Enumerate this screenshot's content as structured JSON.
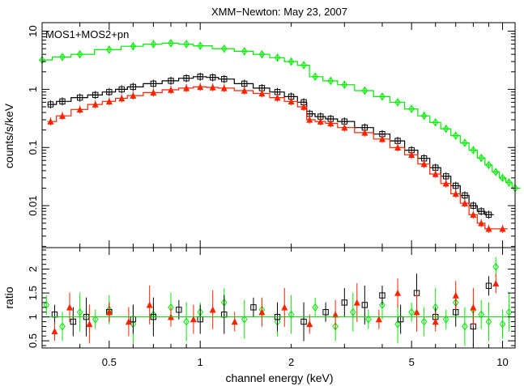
{
  "chart_data": [
    {
      "type": "scatter",
      "panel": "spectrum",
      "title": "XMM−Newton: May 23, 2007",
      "subtitle": "MOS1+MOS2+pn",
      "xlabel": "",
      "ylabel": "counts/s/keV",
      "x_scale": "log",
      "y_scale": "log",
      "xlim": [
        0.3,
        11
      ],
      "ylim": [
        0.0019,
        14
      ],
      "y_ticks": [
        {
          "value": 0.01,
          "label": "0.01"
        },
        {
          "value": 0.1,
          "label": "0.1"
        },
        {
          "value": 1,
          "label": "1"
        },
        {
          "value": 10,
          "label": "10"
        }
      ],
      "grid": false,
      "legend": "none",
      "series": [
        {
          "color": "#00ee00",
          "marker": "diamond",
          "x": [
            0.3,
            0.35,
            0.4,
            0.5,
            0.6,
            0.7,
            0.8,
            0.9,
            1.0,
            1.2,
            1.4,
            1.6,
            1.8,
            2.0,
            2.2,
            2.4,
            2.7,
            3.0,
            3.5,
            4.0,
            4.5,
            5.0,
            5.5,
            6.0,
            6.5,
            7.0,
            7.5,
            8.0,
            8.5,
            9.0,
            9.5,
            10.0,
            10.5,
            11.0
          ],
          "y": [
            3.2,
            3.6,
            4.0,
            4.8,
            5.5,
            6.0,
            6.2,
            6.0,
            5.6,
            5.0,
            4.5,
            4.0,
            3.5,
            3.0,
            2.6,
            1.65,
            1.4,
            1.2,
            0.95,
            0.75,
            0.6,
            0.46,
            0.35,
            0.27,
            0.21,
            0.16,
            0.12,
            0.09,
            0.066,
            0.05,
            0.038,
            0.03,
            0.025,
            0.02
          ]
        },
        {
          "color": "#000000",
          "marker": "square",
          "x": [
            0.32,
            0.35,
            0.4,
            0.45,
            0.5,
            0.55,
            0.6,
            0.7,
            0.8,
            0.9,
            1.0,
            1.1,
            1.2,
            1.4,
            1.6,
            1.8,
            2.0,
            2.2,
            2.3,
            2.5,
            2.7,
            3.0,
            3.5,
            4.0,
            4.5,
            5.0,
            5.5,
            6.0,
            6.5,
            7.0,
            7.5,
            8.0,
            8.5,
            9.0
          ],
          "y": [
            0.55,
            0.62,
            0.72,
            0.8,
            0.9,
            1.0,
            1.1,
            1.25,
            1.4,
            1.55,
            1.65,
            1.6,
            1.5,
            1.25,
            1.05,
            0.9,
            0.75,
            0.6,
            0.38,
            0.34,
            0.31,
            0.28,
            0.22,
            0.17,
            0.13,
            0.09,
            0.065,
            0.045,
            0.032,
            0.022,
            0.015,
            0.01,
            0.008,
            0.007
          ]
        },
        {
          "color": "#ff2200",
          "marker": "triangle",
          "x": [
            0.32,
            0.35,
            0.4,
            0.45,
            0.5,
            0.55,
            0.6,
            0.7,
            0.8,
            0.9,
            1.0,
            1.1,
            1.2,
            1.4,
            1.6,
            1.8,
            2.0,
            2.2,
            2.3,
            2.5,
            2.7,
            3.0,
            3.5,
            4.0,
            4.5,
            5.0,
            5.5,
            6.0,
            6.5,
            7.0,
            7.5,
            8.0,
            8.5,
            9.0,
            10.0
          ],
          "y": [
            0.28,
            0.35,
            0.45,
            0.55,
            0.62,
            0.7,
            0.78,
            0.88,
            0.98,
            1.05,
            1.1,
            1.08,
            1.05,
            0.95,
            0.85,
            0.72,
            0.62,
            0.5,
            0.3,
            0.28,
            0.26,
            0.22,
            0.18,
            0.14,
            0.1,
            0.075,
            0.052,
            0.035,
            0.024,
            0.016,
            0.011,
            0.007,
            0.005,
            0.004,
            0.004
          ]
        }
      ]
    },
    {
      "type": "scatter",
      "panel": "ratio",
      "xlabel": "channel energy (keV)",
      "ylabel": "ratio",
      "x_scale": "log",
      "y_scale": "linear",
      "xlim": [
        0.3,
        11
      ],
      "ylim": [
        0.35,
        2.45
      ],
      "x_ticks": [
        {
          "value": 0.5,
          "label": "0.5"
        },
        {
          "value": 1,
          "label": "1"
        },
        {
          "value": 2,
          "label": "2"
        },
        {
          "value": 5,
          "label": "5"
        },
        {
          "value": 10,
          "label": "10"
        }
      ],
      "y_ticks": [
        {
          "value": 0.5,
          "label": "0.5"
        },
        {
          "value": 1,
          "label": "1"
        },
        {
          "value": 1.5,
          "label": "1.5"
        },
        {
          "value": 2,
          "label": "2"
        }
      ],
      "reference_line": 1,
      "grid": false,
      "legend": "none",
      "series": [
        {
          "color": "#00ee00",
          "marker": "diamond",
          "x": [
            0.31,
            0.35,
            0.4,
            0.45,
            0.5,
            0.6,
            0.7,
            0.8,
            0.9,
            1.0,
            1.2,
            1.4,
            1.6,
            1.8,
            2.0,
            2.4,
            2.8,
            3.2,
            3.6,
            4.0,
            4.5,
            5.0,
            5.5,
            6.0,
            6.5,
            7.0,
            7.5,
            8.0,
            8.5,
            9.0,
            9.5,
            10.0,
            10.5
          ],
          "y": [
            1.25,
            0.8,
            1.1,
            0.95,
            1.15,
            0.85,
            1.05,
            1.2,
            0.9,
            1.1,
            1.3,
            0.95,
            1.15,
            0.9,
            1.05,
            1.2,
            0.8,
            1.1,
            0.95,
            1.25,
            0.85,
            1.1,
            0.9,
            1.2,
            0.95,
            1.3,
            0.8,
            1.15,
            1.05,
            0.9,
            2.05,
            0.85,
            1.1
          ]
        },
        {
          "color": "#000000",
          "marker": "square",
          "x": [
            0.33,
            0.38,
            0.42,
            0.5,
            0.6,
            0.7,
            0.85,
            1.0,
            1.2,
            1.5,
            1.8,
            2.2,
            2.6,
            3.0,
            3.5,
            4.0,
            4.6,
            5.2,
            6.0,
            7.0,
            8.0,
            9.0
          ],
          "y": [
            1.05,
            0.9,
            1.0,
            1.1,
            0.95,
            1.0,
            1.15,
            0.95,
            1.05,
            1.2,
            1.0,
            0.9,
            1.1,
            1.3,
            1.25,
            1.45,
            0.95,
            1.5,
            1.0,
            1.1,
            0.8,
            1.65
          ]
        },
        {
          "color": "#ff2200",
          "marker": "triangle",
          "x": [
            0.33,
            0.37,
            0.43,
            0.5,
            0.58,
            0.68,
            0.8,
            0.95,
            1.1,
            1.3,
            1.6,
            1.9,
            2.3,
            2.8,
            3.3,
            3.9,
            4.5,
            5.2,
            6.0,
            7.0,
            8.0,
            9.5
          ],
          "y": [
            0.7,
            1.2,
            0.85,
            1.1,
            0.9,
            1.25,
            1.0,
            0.95,
            1.15,
            0.9,
            1.1,
            1.2,
            0.85,
            1.05,
            1.3,
            0.95,
            1.5,
            1.1,
            0.9,
            1.45,
            1.2,
            1.7
          ]
        }
      ]
    }
  ]
}
